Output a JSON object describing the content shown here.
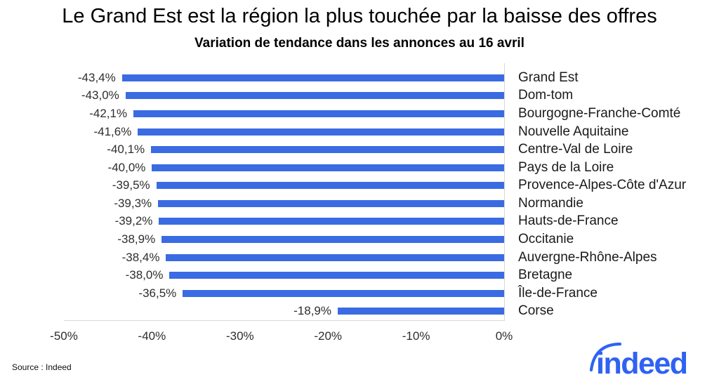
{
  "page": {
    "title": "Le Grand Est est la région la plus touchée par la baisse des offres",
    "subtitle": "Variation de tendance dans les annonces au 16 avril",
    "source": "Source : Indeed",
    "logo_text": "indeed"
  },
  "colors": {
    "bar": "#3A6BE2",
    "logo": "#2F62F2",
    "axis_line": "#D8D8D8",
    "label_text": "#2E2E2E"
  },
  "chart_data": {
    "type": "bar",
    "orientation": "horizontal",
    "title": "Le Grand Est est la région la plus touchée par la baisse des offres",
    "subtitle": "Variation de tendance dans les annonces au 16 avril",
    "xlabel": "",
    "ylabel": "",
    "categories": [
      "Grand Est",
      "Dom-tom",
      "Bourgogne-Franche-Comté",
      "Nouvelle Aquitaine",
      "Centre-Val de Loire",
      "Pays de la Loire",
      "Provence-Alpes-Côte d'Azur",
      "Normandie",
      "Hauts-de-France",
      "Occitanie",
      "Auvergne-Rhône-Alpes",
      "Bretagne",
      "Île-de-France",
      "Corse"
    ],
    "values": [
      -43.4,
      -43.0,
      -42.1,
      -41.6,
      -40.1,
      -40.0,
      -39.5,
      -39.3,
      -39.2,
      -38.9,
      -38.4,
      -38.0,
      -36.5,
      -18.9
    ],
    "value_labels": [
      "-43,4%",
      "-43,0%",
      "-42,1%",
      "-41,6%",
      "-40,1%",
      "-40,0%",
      "-39,5%",
      "-39,3%",
      "-39,2%",
      "-38,9%",
      "-38,4%",
      "-38,0%",
      "-36,5%",
      "-18,9%"
    ],
    "xlim": [
      -50,
      0
    ],
    "x_tick_values": [
      -50,
      -40,
      -30,
      -20,
      -10,
      0
    ],
    "x_ticks": [
      "-50%",
      "-40%",
      "-30%",
      "-20%",
      "-10%",
      "0%"
    ],
    "grid": false,
    "legend": "none",
    "bar_color": "#3A6BE2"
  }
}
